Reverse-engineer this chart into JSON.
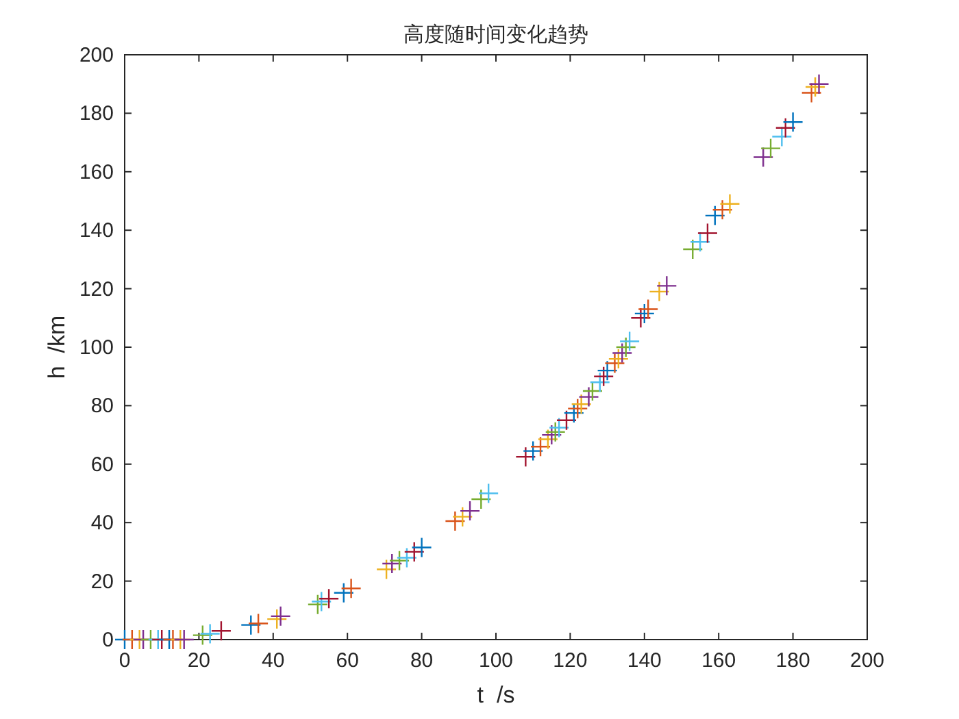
{
  "chart_data": {
    "type": "scatter",
    "title": "高度随时间变化趋势",
    "xlabel": "t  /s",
    "ylabel": "h  /km",
    "x": [
      0,
      2,
      4,
      5,
      7,
      9,
      10,
      12,
      13,
      15,
      16,
      21,
      23,
      26,
      34,
      36,
      41,
      42,
      52,
      53,
      55,
      59,
      61,
      70.5,
      72,
      74,
      76,
      78,
      80,
      89,
      91,
      93,
      96,
      98,
      108,
      110,
      112,
      114,
      115,
      116,
      117,
      119,
      121,
      122,
      123,
      125,
      126,
      128,
      129,
      130,
      132,
      133,
      134,
      135,
      136,
      139,
      140,
      141,
      144,
      146,
      153,
      155,
      157,
      159,
      161,
      163,
      172,
      174,
      177,
      178,
      180,
      185,
      186,
      187
    ],
    "values": [
      0,
      0,
      0,
      0,
      0,
      0,
      0,
      0,
      0,
      0,
      0,
      1.5,
      2,
      3,
      5,
      5.5,
      7,
      8,
      12,
      13,
      14,
      16,
      17.5,
      24,
      26,
      27,
      28,
      30,
      31.5,
      40.5,
      42,
      44,
      48,
      50,
      62.5,
      64.5,
      66,
      68.5,
      70,
      71,
      72.5,
      75,
      77.5,
      79,
      80.5,
      83,
      85,
      88,
      90,
      92,
      94.5,
      96,
      98,
      100,
      102,
      110,
      111.5,
      113,
      119,
      121,
      133.5,
      136,
      139,
      145,
      147,
      149,
      165,
      168,
      172,
      175,
      177,
      187,
      189,
      190
    ],
    "colors": [
      "#0072bd",
      "#d95319",
      "#edb120",
      "#7e2f8e",
      "#77ac30",
      "#4dbeee",
      "#a2142f",
      "#0072bd",
      "#d95319",
      "#edb120",
      "#7e2f8e",
      "#77ac30",
      "#4dbeee",
      "#a2142f",
      "#0072bd",
      "#d95319",
      "#edb120",
      "#7e2f8e",
      "#77ac30",
      "#4dbeee",
      "#a2142f",
      "#0072bd",
      "#d95319",
      "#edb120",
      "#7e2f8e",
      "#77ac30",
      "#4dbeee",
      "#a2142f",
      "#0072bd",
      "#d95319",
      "#edb120",
      "#7e2f8e",
      "#77ac30",
      "#4dbeee",
      "#a2142f",
      "#0072bd",
      "#d95319",
      "#edb120",
      "#7e2f8e",
      "#77ac30",
      "#4dbeee",
      "#a2142f",
      "#0072bd",
      "#d95319",
      "#edb120",
      "#7e2f8e",
      "#77ac30",
      "#4dbeee",
      "#a2142f",
      "#0072bd",
      "#d95319",
      "#edb120",
      "#7e2f8e",
      "#77ac30",
      "#4dbeee",
      "#a2142f",
      "#0072bd",
      "#d95319",
      "#edb120",
      "#7e2f8e",
      "#77ac30",
      "#4dbeee",
      "#a2142f",
      "#0072bd",
      "#d95319",
      "#edb120",
      "#7e2f8e",
      "#77ac30",
      "#4dbeee",
      "#a2142f",
      "#0072bd",
      "#d95319",
      "#edb120",
      "#7e2f8e"
    ],
    "xlim": [
      0,
      200
    ],
    "ylim": [
      0,
      200
    ],
    "xticks": [
      0,
      20,
      40,
      60,
      80,
      100,
      120,
      140,
      160,
      180,
      200
    ],
    "yticks": [
      0,
      20,
      40,
      60,
      80,
      100,
      120,
      140,
      160,
      180,
      200
    ],
    "marker": "cross",
    "grid": false
  }
}
